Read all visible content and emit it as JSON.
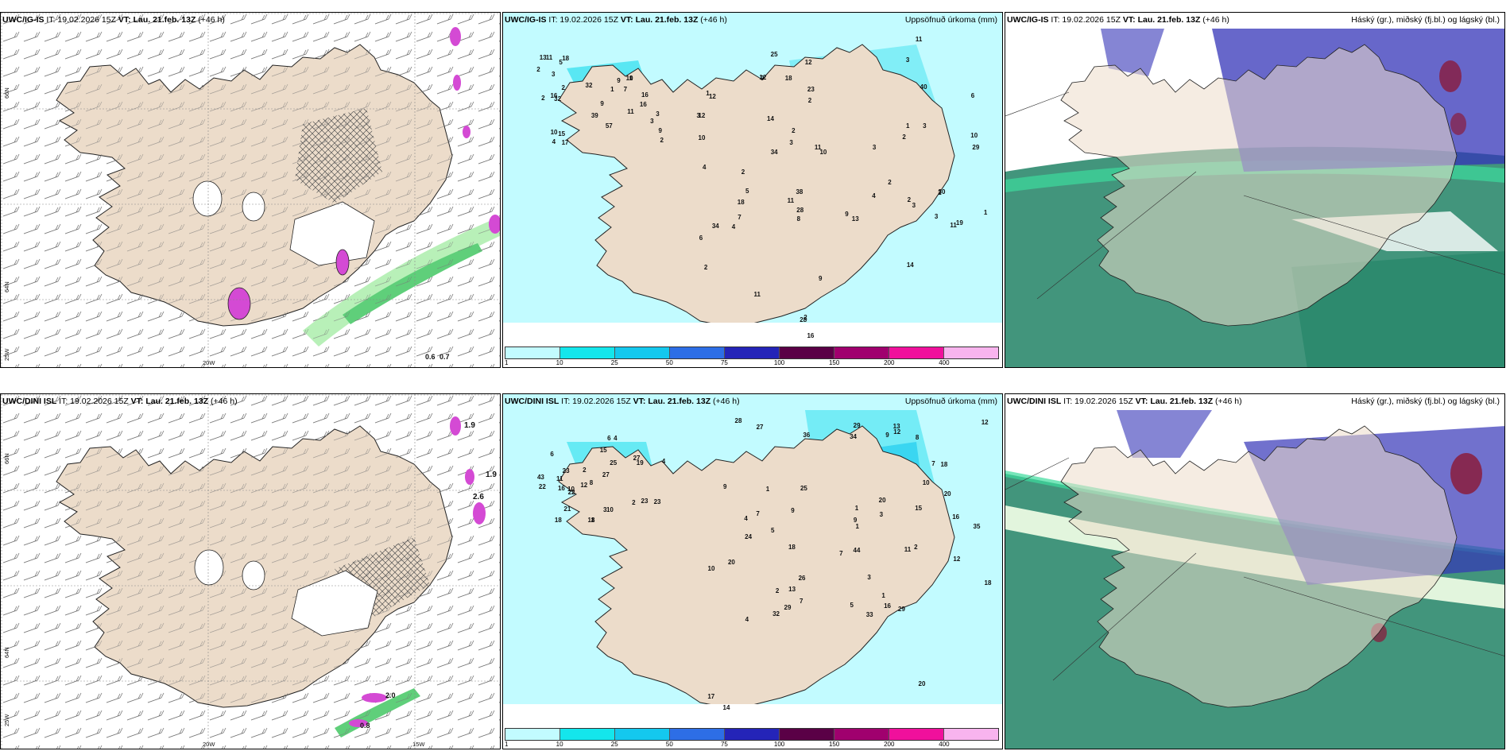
{
  "common": {
    "issue_text": "IT: 19.02.2026 15Z",
    "valid_label": "VT: Lau. 21.feb. 13Z",
    "lead": "(+46 h)",
    "precip_title": "Uppsöfnuð úrkoma (mm)",
    "cloud_title": "Háský (gr.), miðský (fj.bl.) og lágský (bl.)",
    "lon_labels": [
      "25W",
      "20W",
      "15W"
    ],
    "lat_labels": [
      "66N",
      "64N"
    ]
  },
  "rows": [
    {
      "model": "UWC/IG-IS",
      "wind_values": [
        "0.6",
        "0.7"
      ],
      "precip_values": [
        "2",
        "2",
        "2",
        "2",
        "2",
        "3",
        "3",
        "4",
        "2",
        "16",
        "18",
        "18",
        "32",
        "38",
        "34",
        "15",
        "13",
        "14",
        "9",
        "12",
        "11",
        "11",
        "12",
        "34",
        "32",
        "16",
        "11",
        "16",
        "11",
        "12",
        "9",
        "10",
        "12",
        "13",
        "7",
        "5",
        "9",
        "3",
        "3",
        "4",
        "14",
        "11",
        "16",
        "2",
        "9",
        "11",
        "25",
        "23",
        "18",
        "28",
        "28",
        "57",
        "10",
        "40",
        "39",
        "30",
        "29",
        "17",
        "19",
        "9",
        "5",
        "6",
        "10",
        "10",
        "11",
        "9",
        "10",
        "8",
        "3",
        "1",
        "2",
        "4",
        "3",
        "3",
        "3",
        "3",
        "2",
        "2",
        "2",
        "1",
        "2",
        "2",
        "1",
        "4",
        "7",
        "6",
        "3",
        "1",
        "1"
      ]
    },
    {
      "model": "UWC/DINI ISL",
      "wind_values": [
        "1.9",
        "1.9",
        "2.6",
        "2.0",
        "0.8"
      ],
      "precip_values": [
        "2",
        "2",
        "3",
        "2",
        "9",
        "32",
        "22",
        "27",
        "10",
        "15",
        "20",
        "5",
        "3",
        "1",
        "1",
        "8",
        "4",
        "9",
        "10",
        "29",
        "20",
        "21",
        "44",
        "28",
        "27",
        "17",
        "34",
        "27",
        "29",
        "26",
        "23",
        "25",
        "35",
        "43",
        "18",
        "16",
        "11",
        "29",
        "10",
        "12",
        "14",
        "13",
        "16",
        "1",
        "12",
        "23",
        "18",
        "20",
        "19",
        "15",
        "18",
        "22",
        "24",
        "20",
        "23",
        "33",
        "36",
        "18",
        "13",
        "12",
        "10",
        "11",
        "7",
        "6",
        "9",
        "9",
        "8",
        "7",
        "7",
        "11",
        "4",
        "2",
        "6",
        "5",
        "3",
        "4",
        "7",
        "8",
        "4",
        "1",
        "12",
        "25",
        "16"
      ]
    }
  ],
  "precip_colorbar": {
    "colors": [
      "#c2fbff",
      "#14e6ec",
      "#14c8ee",
      "#2d6ee6",
      "#2424b8",
      "#5a0046",
      "#a0006e",
      "#f0109c",
      "#f8b4ee"
    ],
    "labels": [
      "1",
      "10",
      "25",
      "50",
      "75",
      "100",
      "150",
      "200",
      "400"
    ]
  },
  "colors": {
    "land": "#ecdcca",
    "sea": "#ffffff",
    "precip_light": "#c2fbff",
    "precip_mid": "#3fe2f0",
    "snow_pink": "#d44ad4",
    "wind_green": "#b8f0b8",
    "low_cloud": "#2d8a6e",
    "mid_cloud": "#3434b8",
    "high_cloud": "#8a1c3c"
  }
}
